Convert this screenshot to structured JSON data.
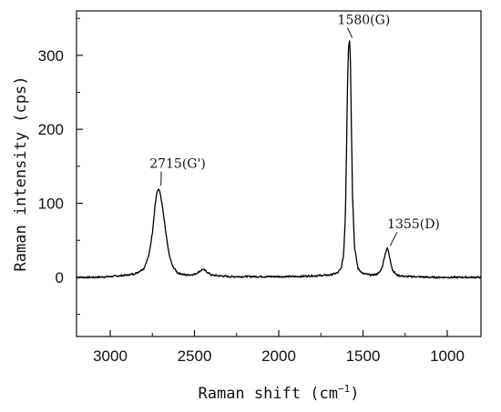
{
  "chart_data": {
    "type": "line",
    "xlabel": "Raman shift (cm",
    "xlabel_sup": "−1",
    "xlabel_close": ")",
    "ylabel": "Raman intensity (cps)",
    "x_reversed": true,
    "xlim": [
      3200,
      800
    ],
    "ylim": [
      -80,
      360
    ],
    "xticks": [
      3000,
      2500,
      2000,
      1500,
      1000
    ],
    "yticks": [
      0,
      100,
      200,
      300
    ],
    "grid": false,
    "legend": "none",
    "line_color": "#000000",
    "series": [
      {
        "x": [
          3200,
          3100,
          3000,
          2950,
          2900,
          2850,
          2800,
          2770,
          2750,
          2735,
          2725,
          2715,
          2705,
          2690,
          2670,
          2650,
          2630,
          2600,
          2550,
          2500,
          2470,
          2450,
          2430,
          2400,
          2300,
          2200,
          2000,
          1900,
          1800,
          1700,
          1650,
          1630,
          1615,
          1605,
          1598,
          1592,
          1586,
          1580,
          1575,
          1570,
          1562,
          1550,
          1530,
          1500,
          1450,
          1420,
          1400,
          1385,
          1370,
          1360,
          1355,
          1350,
          1340,
          1325,
          1300,
          1250,
          1200,
          1100,
          1000,
          900,
          800
        ],
        "y": [
          0,
          0,
          1,
          2,
          3,
          5,
          12,
          30,
          60,
          95,
          112,
          120,
          115,
          95,
          60,
          30,
          15,
          6,
          3,
          4,
          8,
          11,
          8,
          3,
          1,
          1,
          1,
          1,
          2,
          3,
          6,
          12,
          30,
          80,
          170,
          260,
          310,
          320,
          300,
          220,
          110,
          40,
          12,
          5,
          3,
          4,
          7,
          15,
          30,
          38,
          39,
          36,
          25,
          10,
          3,
          1,
          1,
          0,
          0,
          0,
          0
        ]
      }
    ],
    "annotations": [
      {
        "text": "2715(G')",
        "x": 2715,
        "y": 120,
        "text_x": 2600,
        "text_y": 148
      },
      {
        "text": "1580(G)",
        "x": 1580,
        "y": 320,
        "text_x": 1495,
        "text_y": 342
      },
      {
        "text": "1355(D)",
        "x": 1355,
        "y": 39,
        "text_x": 1200,
        "text_y": 66
      }
    ]
  }
}
